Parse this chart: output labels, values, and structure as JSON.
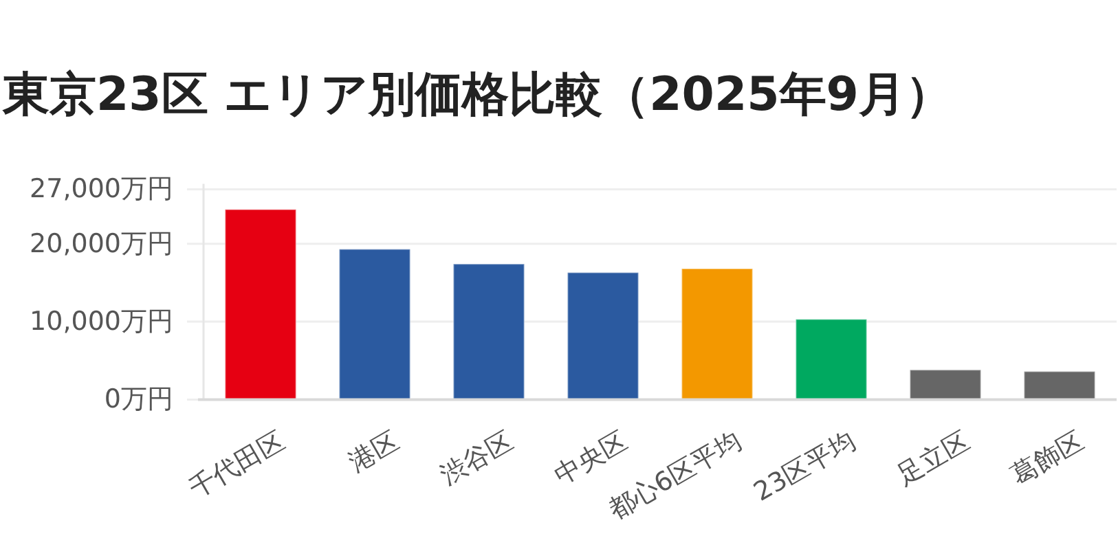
{
  "chart_data": {
    "type": "bar",
    "title": "東京23区 エリア別価格比較（2025年9月）",
    "categories": [
      "千代田区",
      "港区",
      "渋谷区",
      "中央区",
      "都心6区平均",
      "23区平均",
      "足立区",
      "葛飾区"
    ],
    "values": [
      24400,
      19300,
      17400,
      16300,
      16800,
      10300,
      3800,
      3600
    ],
    "colors": [
      "#e60012",
      "#2b5aa0",
      "#2b5aa0",
      "#2b5aa0",
      "#f39800",
      "#00a960",
      "#666666",
      "#666666"
    ],
    "ylim": [
      0,
      27000
    ],
    "yticks": [
      {
        "value": 0,
        "label": "0万円"
      },
      {
        "value": 10000,
        "label": "10,000万円"
      },
      {
        "value": 20000,
        "label": "20,000万円"
      },
      {
        "value": 27000,
        "label": "27,000万円"
      }
    ],
    "grid": "y"
  }
}
